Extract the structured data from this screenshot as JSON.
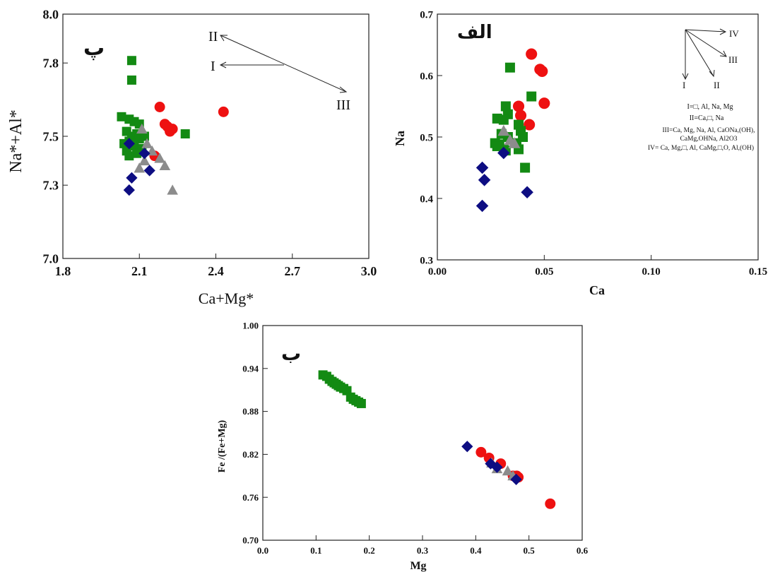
{
  "colors": {
    "red": "#ee1111",
    "green": "#138a13",
    "navy": "#0d0d82",
    "gray": "#8c8c8c"
  },
  "chart_data": [
    {
      "panel": "p",
      "type": "scatter",
      "panel_label": "پ",
      "xlabel": "Ca+Mg*",
      "ylabel": "Na*+Al*",
      "xlim": [
        1.8,
        3.0
      ],
      "ylim": [
        7.0,
        8.0
      ],
      "xticks": [
        "1.8",
        "2.1",
        "2.4",
        "2.7",
        "3.0"
      ],
      "yticks": [
        "7.0",
        "7.3",
        "7.5",
        "7.8",
        "8.0"
      ],
      "series": [
        {
          "marker": "circle",
          "color": "red",
          "x": [
            2.18,
            2.2,
            2.22,
            2.23,
            2.21,
            2.16,
            2.43
          ],
          "y": [
            7.62,
            7.55,
            7.52,
            7.53,
            7.54,
            7.42,
            7.6
          ]
        },
        {
          "marker": "square",
          "color": "green",
          "x": [
            2.07,
            2.07,
            2.03,
            2.06,
            2.08,
            2.1,
            2.05,
            2.07,
            2.09,
            2.1,
            2.12,
            2.04,
            2.06,
            2.08,
            2.05,
            2.11,
            2.07,
            2.09,
            2.28,
            2.06
          ],
          "y": [
            7.81,
            7.73,
            7.58,
            7.57,
            7.56,
            7.55,
            7.52,
            7.5,
            7.51,
            7.49,
            7.5,
            7.47,
            7.48,
            7.46,
            7.44,
            7.45,
            7.47,
            7.43,
            7.51,
            7.42
          ]
        },
        {
          "marker": "triangle",
          "color": "gray",
          "x": [
            2.11,
            2.13,
            2.15,
            2.12,
            2.18,
            2.2,
            2.1,
            2.23
          ],
          "y": [
            7.53,
            7.47,
            7.44,
            7.4,
            7.41,
            7.38,
            7.37,
            7.28
          ]
        },
        {
          "marker": "diamond",
          "color": "navy",
          "x": [
            2.06,
            2.12,
            2.14,
            2.07,
            2.06
          ],
          "y": [
            7.47,
            7.43,
            7.36,
            7.33,
            7.28
          ]
        }
      ],
      "annotations": {
        "arrows": [
          "II",
          "I",
          "III"
        ]
      }
    },
    {
      "panel": "alef",
      "type": "scatter",
      "panel_label": "الف",
      "xlabel": "Ca",
      "ylabel": "Na",
      "xlim": [
        0.0,
        0.15
      ],
      "ylim": [
        0.3,
        0.7
      ],
      "xticks": [
        "0.00",
        "0.05",
        "0.10",
        "0.15"
      ],
      "yticks": [
        "0.3",
        "0.4",
        "0.5",
        "0.6",
        "0.7"
      ],
      "series": [
        {
          "marker": "circle",
          "color": "red",
          "x": [
            0.044,
            0.048,
            0.049,
            0.038,
            0.039,
            0.05,
            0.043
          ],
          "y": [
            0.635,
            0.61,
            0.607,
            0.55,
            0.535,
            0.555,
            0.52
          ]
        },
        {
          "marker": "square",
          "color": "green",
          "x": [
            0.034,
            0.044,
            0.032,
            0.033,
            0.028,
            0.031,
            0.038,
            0.039,
            0.03,
            0.033,
            0.027,
            0.029,
            0.031,
            0.037,
            0.04,
            0.028,
            0.032,
            0.038,
            0.041
          ],
          "y": [
            0.613,
            0.566,
            0.55,
            0.537,
            0.53,
            0.528,
            0.52,
            0.51,
            0.505,
            0.5,
            0.49,
            0.488,
            0.48,
            0.49,
            0.5,
            0.485,
            0.478,
            0.48,
            0.45
          ]
        },
        {
          "marker": "triangle",
          "color": "gray",
          "x": [
            0.031,
            0.034,
            0.036
          ],
          "y": [
            0.51,
            0.495,
            0.49
          ]
        },
        {
          "marker": "diamond",
          "color": "navy",
          "x": [
            0.021,
            0.022,
            0.021,
            0.031,
            0.042
          ],
          "y": [
            0.45,
            0.43,
            0.388,
            0.474,
            0.41
          ]
        }
      ],
      "legend_text": [
        "I=□, Al, Na, Mg",
        "II=Ca,□, Na",
        "III=Ca, Mg, Na, Al, CaONa,(OH),",
        "CaMg,OHNa, Al2O3",
        "IV= Ca, Mg,□, Al, CaMg,□,O, Al,(OH)"
      ],
      "vector_labels": [
        "IV",
        "III",
        "II",
        "I"
      ]
    },
    {
      "panel": "b",
      "type": "scatter",
      "panel_label": "ب",
      "xlabel": "Mg",
      "ylabel": "Fe /(Fe+Mg)",
      "xlim": [
        0.0,
        0.6
      ],
      "ylim": [
        0.7,
        1.0
      ],
      "xticks": [
        "0.0",
        "0.1",
        "0.2",
        "0.3",
        "0.4",
        "0.5",
        "0.6"
      ],
      "yticks": [
        "0.70",
        "0.76",
        "0.82",
        "0.88",
        "0.94",
        "1.00"
      ],
      "series": [
        {
          "marker": "square",
          "color": "green",
          "x": [
            0.113,
            0.12,
            0.125,
            0.13,
            0.134,
            0.138,
            0.142,
            0.146,
            0.152,
            0.158,
            0.165,
            0.17,
            0.175,
            0.18,
            0.185
          ],
          "y": [
            0.931,
            0.929,
            0.925,
            0.922,
            0.92,
            0.918,
            0.916,
            0.914,
            0.912,
            0.909,
            0.9,
            0.897,
            0.895,
            0.893,
            0.891
          ]
        },
        {
          "marker": "circle",
          "color": "red",
          "x": [
            0.41,
            0.425,
            0.447,
            0.47,
            0.477,
            0.48,
            0.54
          ],
          "y": [
            0.823,
            0.815,
            0.807,
            0.79,
            0.79,
            0.788,
            0.751
          ]
        },
        {
          "marker": "triangle",
          "color": "gray",
          "x": [
            0.43,
            0.44,
            0.46,
            0.47
          ],
          "y": [
            0.808,
            0.8,
            0.797,
            0.79
          ]
        },
        {
          "marker": "diamond",
          "color": "navy",
          "x": [
            0.384,
            0.428,
            0.44,
            0.476
          ],
          "y": [
            0.831,
            0.807,
            0.802,
            0.785
          ]
        }
      ]
    }
  ]
}
